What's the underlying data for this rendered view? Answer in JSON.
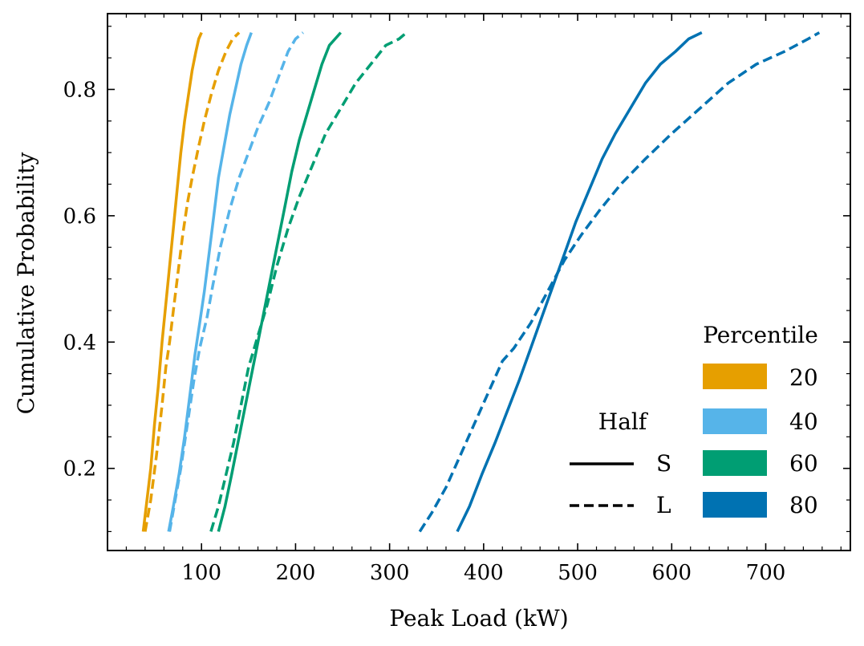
{
  "chart_data": {
    "type": "line",
    "title": "",
    "xlabel": "Peak Load (kW)",
    "ylabel": "Cumulative Probability",
    "xlim": [
      0,
      790
    ],
    "ylim": [
      0.07,
      0.92
    ],
    "xticks": [
      100,
      200,
      300,
      400,
      500,
      600,
      700
    ],
    "yticks": [
      0.2,
      0.4,
      0.6,
      0.8
    ],
    "xtick_labels": [
      "100",
      "200",
      "300",
      "400",
      "500",
      "600",
      "700"
    ],
    "ytick_labels": [
      "0.2",
      "0.4",
      "0.6",
      "0.8"
    ],
    "grid": false,
    "legend_half": {
      "title": "Half",
      "entries": [
        {
          "label": "S",
          "style": "solid"
        },
        {
          "label": "L",
          "style": "dashed"
        }
      ]
    },
    "legend_percentile": {
      "title": "Percentile",
      "entries": [
        {
          "label": "20",
          "color": "#E69F00"
        },
        {
          "label": "40",
          "color": "#56B4E9"
        },
        {
          "label": "60",
          "color": "#009E73"
        },
        {
          "label": "80",
          "color": "#0072B2"
        }
      ]
    },
    "series": [
      {
        "name": "20 S",
        "percentile": "20",
        "half": "S",
        "color": "#E69F00",
        "style": "solid",
        "x": [
          38,
          42,
          46,
          50,
          54,
          58,
          62,
          66,
          70,
          74,
          78,
          82,
          86,
          90,
          94,
          97,
          100
        ],
        "y": [
          0.1,
          0.15,
          0.2,
          0.27,
          0.33,
          0.4,
          0.46,
          0.52,
          0.58,
          0.64,
          0.7,
          0.75,
          0.79,
          0.83,
          0.86,
          0.88,
          0.89
        ]
      },
      {
        "name": "20 L",
        "percentile": "20",
        "half": "L",
        "color": "#E69F00",
        "style": "dashed",
        "x": [
          40,
          46,
          52,
          58,
          62,
          66,
          70,
          75,
          80,
          85,
          90,
          97,
          103,
          110,
          118,
          126,
          133,
          140
        ],
        "y": [
          0.1,
          0.15,
          0.22,
          0.3,
          0.36,
          0.4,
          0.45,
          0.51,
          0.57,
          0.62,
          0.66,
          0.71,
          0.75,
          0.79,
          0.83,
          0.86,
          0.88,
          0.89
        ]
      },
      {
        "name": "40 S",
        "percentile": "40",
        "half": "S",
        "color": "#56B4E9",
        "style": "solid",
        "x": [
          65,
          70,
          76,
          82,
          88,
          93,
          98,
          103,
          108,
          113,
          118,
          124,
          130,
          136,
          142,
          148,
          153
        ],
        "y": [
          0.1,
          0.14,
          0.19,
          0.25,
          0.32,
          0.38,
          0.43,
          0.48,
          0.54,
          0.6,
          0.66,
          0.71,
          0.76,
          0.8,
          0.84,
          0.87,
          0.89
        ]
      },
      {
        "name": "40 L",
        "percentile": "40",
        "half": "L",
        "color": "#56B4E9",
        "style": "dashed",
        "x": [
          66,
          72,
          78,
          85,
          92,
          98,
          106,
          112,
          120,
          130,
          140,
          150,
          160,
          172,
          182,
          192,
          200,
          208
        ],
        "y": [
          0.1,
          0.15,
          0.2,
          0.27,
          0.34,
          0.39,
          0.44,
          0.49,
          0.55,
          0.61,
          0.66,
          0.7,
          0.74,
          0.78,
          0.82,
          0.86,
          0.88,
          0.89
        ]
      },
      {
        "name": "60 S",
        "percentile": "60",
        "half": "S",
        "color": "#009E73",
        "style": "solid",
        "x": [
          118,
          125,
          132,
          140,
          148,
          156,
          164,
          172,
          180,
          188,
          196,
          204,
          212,
          220,
          228,
          236,
          242,
          248
        ],
        "y": [
          0.1,
          0.14,
          0.19,
          0.25,
          0.31,
          0.37,
          0.43,
          0.49,
          0.55,
          0.61,
          0.67,
          0.72,
          0.76,
          0.8,
          0.84,
          0.87,
          0.88,
          0.89
        ]
      },
      {
        "name": "60 L",
        "percentile": "60",
        "half": "L",
        "color": "#009E73",
        "style": "dashed",
        "x": [
          110,
          118,
          126,
          134,
          142,
          150,
          160,
          170,
          180,
          192,
          204,
          218,
          232,
          248,
          264,
          280,
          296,
          310,
          318
        ],
        "y": [
          0.1,
          0.14,
          0.19,
          0.24,
          0.3,
          0.36,
          0.41,
          0.46,
          0.52,
          0.58,
          0.63,
          0.68,
          0.73,
          0.77,
          0.81,
          0.84,
          0.87,
          0.88,
          0.89
        ]
      },
      {
        "name": "80 S",
        "percentile": "80",
        "half": "S",
        "color": "#0072B2",
        "style": "solid",
        "x": [
          372,
          385,
          398,
          412,
          425,
          438,
          450,
          462,
          474,
          486,
          498,
          512,
          526,
          540,
          556,
          572,
          588,
          604,
          618,
          632
        ],
        "y": [
          0.1,
          0.14,
          0.19,
          0.24,
          0.29,
          0.34,
          0.39,
          0.44,
          0.49,
          0.54,
          0.59,
          0.64,
          0.69,
          0.73,
          0.77,
          0.81,
          0.84,
          0.86,
          0.88,
          0.89
        ]
      },
      {
        "name": "80 L",
        "percentile": "80",
        "half": "L",
        "color": "#0072B2",
        "style": "dashed",
        "x": [
          332,
          345,
          360,
          375,
          390,
          405,
          420,
          432,
          450,
          468,
          486,
          504,
          524,
          546,
          572,
          600,
          630,
          660,
          690,
          720,
          745,
          757
        ],
        "y": [
          0.1,
          0.13,
          0.17,
          0.22,
          0.27,
          0.32,
          0.37,
          0.39,
          0.43,
          0.48,
          0.53,
          0.57,
          0.61,
          0.65,
          0.69,
          0.73,
          0.77,
          0.81,
          0.84,
          0.86,
          0.88,
          0.89
        ]
      }
    ]
  }
}
